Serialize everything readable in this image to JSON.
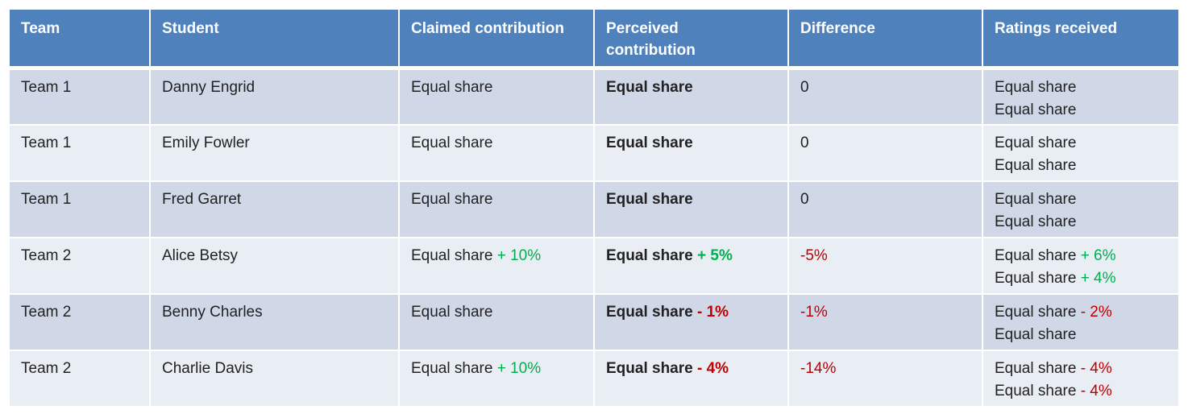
{
  "colors": {
    "header_bg": "#4f81bd",
    "row_odd": "#d0d8e8",
    "row_even": "#e9edf4",
    "positive": "#00b050",
    "negative": "#c00000"
  },
  "headers": [
    "Team",
    "Student",
    "Claimed contribution",
    "Perceived contribution",
    "Difference",
    "Ratings received"
  ],
  "rows": [
    {
      "team": "Team 1",
      "student": "Danny Engrid",
      "claimed": {
        "base": "Equal share",
        "delta": ""
      },
      "perceived": {
        "base": "Equal share",
        "delta": ""
      },
      "difference": "0",
      "ratings": [
        {
          "base": "Equal share",
          "delta": ""
        },
        {
          "base": "Equal share",
          "delta": ""
        }
      ]
    },
    {
      "team": "Team 1",
      "student": "Emily Fowler",
      "claimed": {
        "base": "Equal share",
        "delta": ""
      },
      "perceived": {
        "base": "Equal share",
        "delta": ""
      },
      "difference": "0",
      "ratings": [
        {
          "base": "Equal share",
          "delta": ""
        },
        {
          "base": "Equal share",
          "delta": ""
        }
      ]
    },
    {
      "team": "Team 1",
      "student": "Fred Garret",
      "claimed": {
        "base": "Equal share",
        "delta": ""
      },
      "perceived": {
        "base": "Equal share",
        "delta": ""
      },
      "difference": "0",
      "ratings": [
        {
          "base": "Equal share",
          "delta": ""
        },
        {
          "base": "Equal share",
          "delta": ""
        }
      ]
    },
    {
      "team": "Team 2",
      "student": "Alice Betsy",
      "claimed": {
        "base": "Equal share",
        "delta": "+ 10%"
      },
      "perceived": {
        "base": "Equal share",
        "delta": "+ 5%"
      },
      "difference": "-5%",
      "ratings": [
        {
          "base": "Equal share",
          "delta": "+ 6%"
        },
        {
          "base": "Equal share",
          "delta": "+ 4%"
        }
      ]
    },
    {
      "team": "Team 2",
      "student": "Benny Charles",
      "claimed": {
        "base": "Equal share",
        "delta": ""
      },
      "perceived": {
        "base": "Equal share",
        "delta": "- 1%"
      },
      "difference": "-1%",
      "ratings": [
        {
          "base": "Equal share",
          "delta": "- 2%"
        },
        {
          "base": "Equal share",
          "delta": ""
        }
      ]
    },
    {
      "team": "Team 2",
      "student": "Charlie Davis",
      "claimed": {
        "base": "Equal share",
        "delta": "+ 10%"
      },
      "perceived": {
        "base": "Equal share",
        "delta": "- 4%"
      },
      "difference": "-14%",
      "ratings": [
        {
          "base": "Equal share",
          "delta": "- 4%"
        },
        {
          "base": "Equal share",
          "delta": "- 4%"
        }
      ]
    }
  ]
}
